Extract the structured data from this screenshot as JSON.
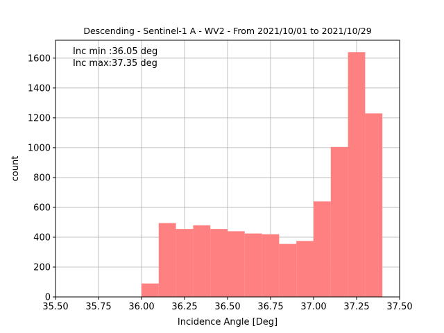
{
  "chart_data": {
    "type": "bar",
    "title": "Descending - Sentinel-1 A - WV2 - From 2021/10/01 to 2021/10/29",
    "xlabel": "Incidence Angle [Deg]",
    "ylabel": "count",
    "xlim": [
      35.5,
      37.5
    ],
    "ylim": [
      0,
      1720
    ],
    "xticks": [
      "35.50",
      "35.75",
      "36.00",
      "36.25",
      "36.50",
      "36.75",
      "37.00",
      "37.25",
      "37.50"
    ],
    "yticks": [
      "0",
      "200",
      "400",
      "600",
      "800",
      "1000",
      "1200",
      "1400",
      "1600"
    ],
    "grid": true,
    "bar_color": "#ff8080",
    "bins": [
      {
        "x0": 36.0,
        "x1": 36.1,
        "count": 90
      },
      {
        "x0": 36.1,
        "x1": 36.2,
        "count": 495
      },
      {
        "x0": 36.2,
        "x1": 36.3,
        "count": 455
      },
      {
        "x0": 36.3,
        "x1": 36.4,
        "count": 480
      },
      {
        "x0": 36.4,
        "x1": 36.5,
        "count": 455
      },
      {
        "x0": 36.5,
        "x1": 36.6,
        "count": 440
      },
      {
        "x0": 36.6,
        "x1": 36.7,
        "count": 425
      },
      {
        "x0": 36.7,
        "x1": 36.8,
        "count": 420
      },
      {
        "x0": 36.8,
        "x1": 36.9,
        "count": 355
      },
      {
        "x0": 36.9,
        "x1": 37.0,
        "count": 375
      },
      {
        "x0": 37.0,
        "x1": 37.1,
        "count": 640
      },
      {
        "x0": 37.1,
        "x1": 37.2,
        "count": 1005
      },
      {
        "x0": 37.2,
        "x1": 37.3,
        "count": 1640
      },
      {
        "x0": 37.3,
        "x1": 37.4,
        "count": 1230
      }
    ],
    "annotations": [
      "Inc min :36.05 deg",
      "Inc max:37.35 deg"
    ]
  }
}
